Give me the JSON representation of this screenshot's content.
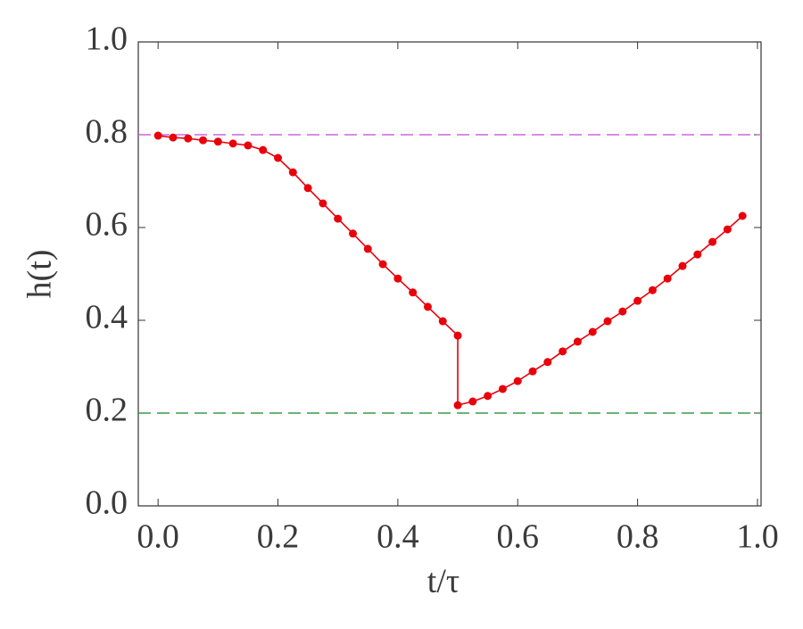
{
  "chart_data": {
    "type": "line",
    "x_label": "t/τ",
    "y_label": "h(t)",
    "x": [
      0,
      0.025,
      0.05,
      0.075,
      0.1,
      0.125,
      0.15,
      0.175,
      0.2,
      0.225,
      0.25,
      0.275,
      0.3,
      0.325,
      0.35,
      0.375,
      0.4,
      0.425,
      0.45,
      0.475,
      0.5,
      0.5,
      0.525,
      0.55,
      0.575,
      0.6,
      0.625,
      0.65,
      0.675,
      0.7,
      0.725,
      0.75,
      0.775,
      0.8,
      0.825,
      0.85,
      0.875,
      0.9,
      0.925,
      0.95,
      0.975
    ],
    "series": [
      {
        "color": "#e8000b",
        "values": [
          0.798,
          0.794,
          0.792,
          0.788,
          0.785,
          0.781,
          0.777,
          0.767,
          0.75,
          0.719,
          0.685,
          0.652,
          0.619,
          0.587,
          0.554,
          0.521,
          0.49,
          0.46,
          0.429,
          0.398,
          0.367,
          0.217,
          0.225,
          0.237,
          0.252,
          0.269,
          0.29,
          0.31,
          0.333,
          0.354,
          0.375,
          0.398,
          0.419,
          0.442,
          0.465,
          0.49,
          0.517,
          0.542,
          0.569,
          0.596,
          0.625
        ]
      }
    ],
    "hlines": [
      {
        "value": 0.8,
        "color": "#cc66dd"
      },
      {
        "value": 0.2,
        "color": "#3a9a4a"
      }
    ],
    "xlim": [
      -0.033,
      1.006
    ],
    "ylim": [
      0,
      1
    ],
    "xticks": [
      {
        "value": 0,
        "label": "0.0"
      },
      0.2,
      0.4,
      0.6,
      0.8,
      {
        "value": 1,
        "label": "1.0"
      }
    ],
    "yticks": [
      {
        "value": 0,
        "label": "0.0"
      },
      0.2,
      0.4,
      0.6,
      0.8,
      {
        "value": 1,
        "label": "1.0"
      }
    ]
  }
}
